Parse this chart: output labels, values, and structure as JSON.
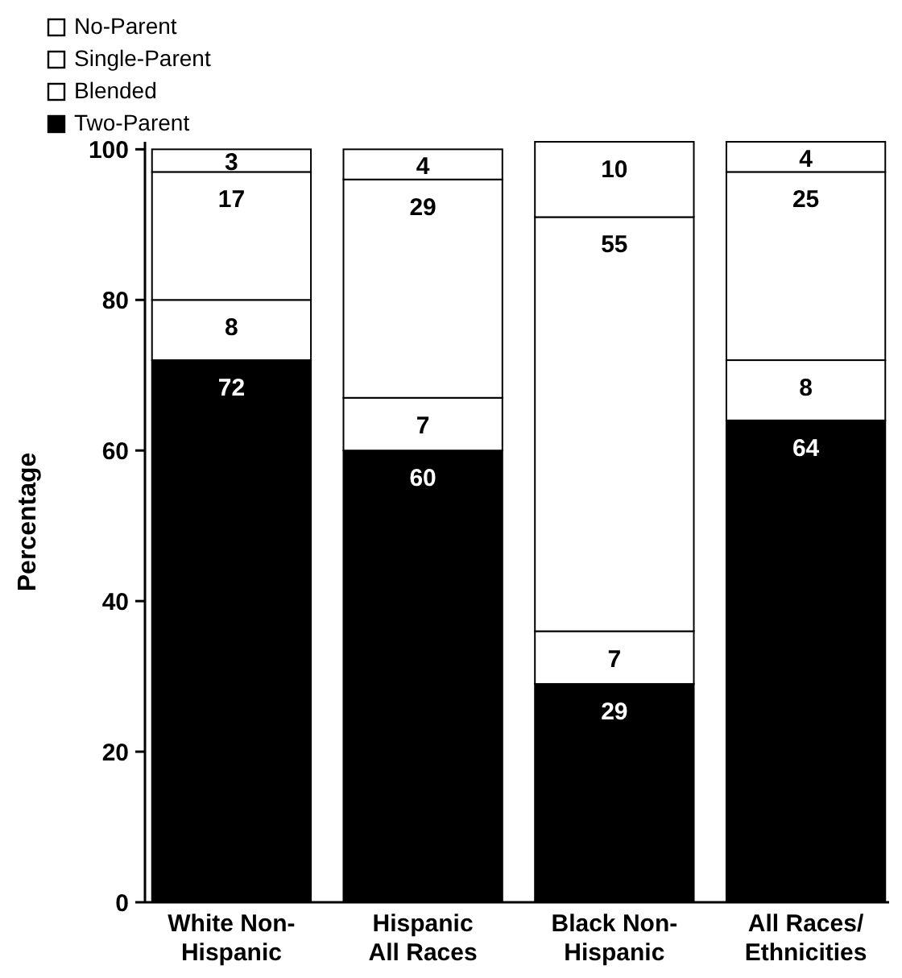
{
  "chart_data": {
    "type": "bar",
    "stacked": true,
    "ylabel": "Percentage",
    "categories": [
      "White Non-Hispanic",
      "Hispanic All Races",
      "Black Non-Hispanic",
      "All Races/Ethnicities"
    ],
    "ylim": [
      0,
      101
    ],
    "yticks": [
      0,
      20,
      40,
      60,
      80,
      100
    ],
    "data_labels": true,
    "legend": "top left",
    "grid": false,
    "series": [
      {
        "name": "Two-Parent",
        "color": "#000000",
        "values": [
          72,
          60,
          29,
          64
        ]
      },
      {
        "name": "Blended",
        "color": "#ffffff",
        "values": [
          8,
          7,
          7,
          8
        ]
      },
      {
        "name": "Single-Parent",
        "color": "#ffffff",
        "values": [
          17,
          29,
          55,
          25
        ]
      },
      {
        "name": "No-Parent",
        "color": "#ffffff",
        "values": [
          3,
          4,
          10,
          4
        ]
      }
    ]
  }
}
